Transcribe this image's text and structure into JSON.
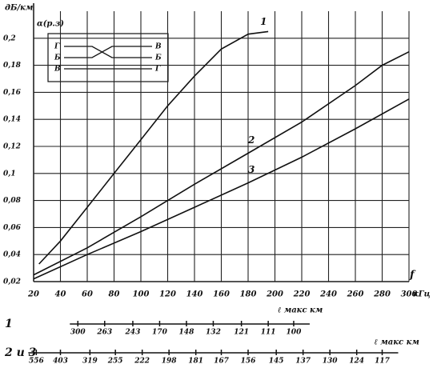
{
  "chart_data": {
    "type": "line",
    "y_unit": "дБ/км",
    "y_label": "α(р.з)",
    "x_unit": "кГц",
    "x": [
      20,
      40,
      60,
      80,
      100,
      120,
      140,
      160,
      180,
      200,
      220,
      240,
      260,
      280,
      300
    ],
    "xlim": [
      20,
      300
    ],
    "ylim": [
      0.02,
      0.22
    ],
    "xticks": [
      20,
      40,
      60,
      80,
      100,
      120,
      140,
      160,
      180,
      200,
      220,
      240,
      260,
      280,
      300
    ],
    "yticks": [
      {
        "value": 0.02,
        "label": "0,02"
      },
      {
        "value": 0.04,
        "label": "0,04"
      },
      {
        "value": 0.06,
        "label": "0,06"
      },
      {
        "value": 0.08,
        "label": "0,08"
      },
      {
        "value": 0.1,
        "label": "0,1"
      },
      {
        "value": 0.12,
        "label": "0,12"
      },
      {
        "value": 0.14,
        "label": "0,14"
      },
      {
        "value": 0.16,
        "label": "0,16"
      },
      {
        "value": 0.18,
        "label": "0,18"
      },
      {
        "value": 0.2,
        "label": "0,2"
      }
    ],
    "grid": true,
    "series": [
      {
        "name": "1",
        "color": "#111111",
        "x": [
          24,
          40,
          60,
          80,
          100,
          120,
          140,
          160,
          180,
          195
        ],
        "values": [
          0.033,
          0.05,
          0.075,
          0.1,
          0.125,
          0.15,
          0.172,
          0.192,
          0.203,
          0.205
        ]
      },
      {
        "name": "2",
        "color": "#111111",
        "x": [
          20,
          60,
          100,
          140,
          180,
          220,
          260,
          280,
          300
        ],
        "values": [
          0.025,
          0.045,
          0.068,
          0.092,
          0.115,
          0.138,
          0.165,
          0.18,
          0.19
        ]
      },
      {
        "name": "3",
        "color": "#111111",
        "x": [
          20,
          60,
          100,
          140,
          180,
          220,
          260,
          300
        ],
        "values": [
          0.022,
          0.04,
          0.057,
          0.075,
          0.093,
          0.112,
          0.133,
          0.155
        ]
      }
    ],
    "corner_mark": "f",
    "inset": {
      "left": [
        "Г",
        "Б",
        "В"
      ],
      "right": [
        "В",
        "Б",
        "Г"
      ]
    },
    "scales": [
      {
        "name": "1",
        "title": "ℓ макс км",
        "x": [
          53,
          73,
          94,
          114,
          134,
          154,
          175,
          195,
          214
        ],
        "labels": [
          300,
          263,
          243,
          170,
          148,
          132,
          121,
          111,
          100
        ]
      },
      {
        "name": "2 и 3",
        "title": "ℓ макс км",
        "x": [
          22,
          40,
          62,
          81,
          101,
          121,
          141,
          160,
          180,
          201,
          221,
          241,
          261,
          280
        ],
        "labels": [
          556,
          403,
          319,
          255,
          222,
          198,
          181,
          167,
          156,
          145,
          137,
          130,
          124,
          117
        ]
      }
    ]
  }
}
